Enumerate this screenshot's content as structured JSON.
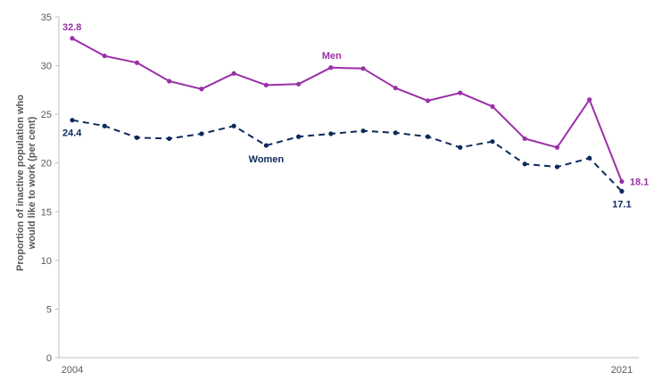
{
  "chart_data": {
    "type": "line",
    "x": [
      2004,
      2005,
      2006,
      2007,
      2008,
      2009,
      2010,
      2011,
      2012,
      2013,
      2014,
      2015,
      2016,
      2017,
      2018,
      2019,
      2020,
      2021
    ],
    "x_tick_labels": [
      "2004",
      "2021"
    ],
    "ylabel_lines": [
      "Proportion of inactive population who",
      "would like to work (per cent)"
    ],
    "ylim": [
      0,
      35
    ],
    "yticks": [
      0,
      5,
      10,
      15,
      20,
      25,
      30,
      35
    ],
    "grid": false,
    "series": [
      {
        "name": "Men",
        "color": "#9b30a8",
        "dash": "solid",
        "values": [
          32.8,
          31.0,
          30.3,
          28.4,
          27.6,
          29.2,
          28.0,
          28.1,
          29.8,
          29.7,
          27.7,
          26.4,
          27.2,
          25.8,
          22.5,
          21.6,
          26.5,
          18.1
        ],
        "start_label": "32.8",
        "end_label": "18.1"
      },
      {
        "name": "Women",
        "color": "#0b2a5c",
        "dash": "dashed",
        "values": [
          24.4,
          23.8,
          22.6,
          22.5,
          23.0,
          23.8,
          21.8,
          22.7,
          23.0,
          23.3,
          23.1,
          22.7,
          21.6,
          22.2,
          19.9,
          19.6,
          20.5,
          17.1
        ],
        "start_label": "24.4",
        "end_label": "17.1"
      }
    ]
  }
}
